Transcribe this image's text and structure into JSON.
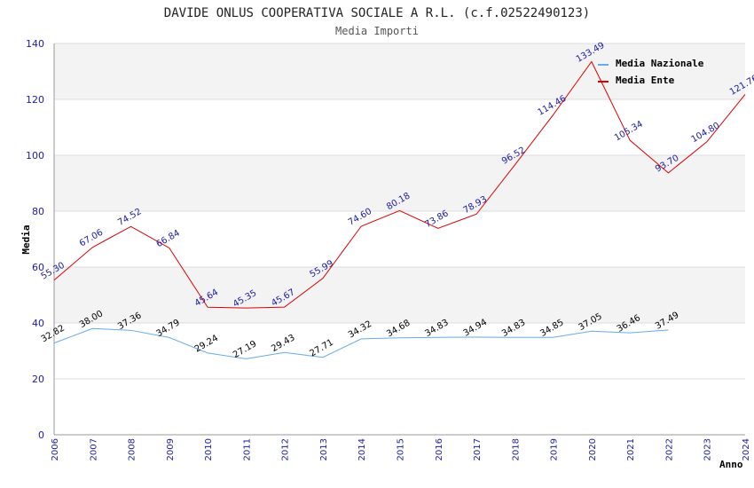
{
  "chart_data": {
    "type": "line",
    "title": "DAVIDE ONLUS COOPERATIVA SOCIALE A R.L. (c.f.02522490123)",
    "subtitle": "Media Importi",
    "xlabel": "Anno",
    "ylabel": "Media",
    "ylim": [
      0,
      140
    ],
    "yticks": [
      "0",
      "20",
      "40",
      "60",
      "80",
      "100",
      "120",
      "140"
    ],
    "categories": [
      "2006",
      "2007",
      "2008",
      "2009",
      "2010",
      "2011",
      "2012",
      "2013",
      "2014",
      "2015",
      "2016",
      "2017",
      "2018",
      "2019",
      "2020",
      "2021",
      "2022",
      "2023",
      "2024"
    ],
    "grid": true,
    "legend_position": "top-right",
    "series": [
      {
        "name": "Media Nazionale",
        "color": "#66aaee",
        "label_color": "#000000",
        "values": [
          32.82,
          38.0,
          37.36,
          34.79,
          29.24,
          27.19,
          29.43,
          27.71,
          34.32,
          34.68,
          34.83,
          34.94,
          34.83,
          34.85,
          37.05,
          36.46,
          37.49,
          null,
          null
        ],
        "labels": [
          "32.82",
          "38.00",
          "37.36",
          "34.79",
          "29.24",
          "27.19",
          "29.43",
          "27.71",
          "34.32",
          "34.68",
          "34.83",
          "34.94",
          "34.83",
          "34.85",
          "37.05",
          "36.46",
          "37.49",
          null,
          null
        ]
      },
      {
        "name": "Media Ente",
        "color": "#dd0000",
        "label_color": "#1a1aa0",
        "values": [
          55.3,
          67.06,
          74.52,
          66.84,
          45.64,
          45.35,
          45.67,
          55.99,
          74.6,
          80.18,
          73.86,
          78.93,
          96.52,
          114.46,
          133.49,
          105.34,
          93.7,
          104.8,
          121.76
        ],
        "labels": [
          "55.30",
          "67.06",
          "74.52",
          "66.84",
          "45.64",
          "45.35",
          "45.67",
          "55.99",
          "74.60",
          "80.18",
          "73.86",
          "78.93",
          "96.52",
          "114.46",
          "133.49",
          "105.34",
          "93.70",
          "104.80",
          "121.76"
        ]
      }
    ]
  }
}
